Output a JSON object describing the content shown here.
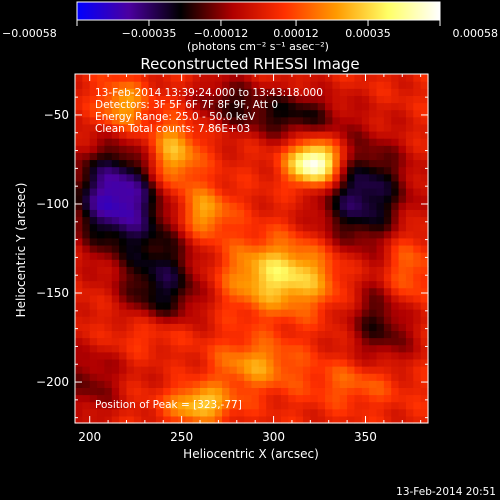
{
  "chart_data": {
    "type": "heatmap",
    "title": "Reconstructed RHESSI Image",
    "xlabel": "Heliocentric X (arcsec)",
    "ylabel": "Heliocentric Y (arcsec)",
    "xlim": [
      192,
      384
    ],
    "ylim": [
      -223,
      -27
    ],
    "x_ticks": [
      200,
      250,
      300,
      350
    ],
    "x_tick_labels": [
      "200",
      "250",
      "300",
      "350"
    ],
    "y_ticks": [
      -50,
      -100,
      -150,
      -200
    ],
    "y_tick_labels": [
      "−50",
      "−100",
      "−150",
      "−200"
    ],
    "colorbar": {
      "range": [
        -0.00058,
        0.00058
      ],
      "ticks": [
        -0.00058,
        -0.00035,
        -0.00012,
        0.00012,
        0.00035,
        0.00058
      ],
      "tick_labels": [
        "−0.00058",
        "−0.00035",
        "−0.00012",
        "0.00012",
        "0.00035",
        "0.00058"
      ],
      "units_label": "(photons cm⁻² s⁻¹ asec⁻²)",
      "colors": [
        "#0000ff",
        "#4b00a0",
        "#000000",
        "#b00000",
        "#ff3000",
        "#ff9a00",
        "#ffff66",
        "#ffffff"
      ]
    },
    "annotations": [
      "13-Feb-2014 13:39:24.000 to 13:43:18.000",
      "Detectors: 3F 5F 6F 7F 8F 9F, Att 0",
      "Energy Range: 25.0 - 50.0 keV",
      "Clean    Total counts: 7.86E+03"
    ],
    "peak_label": "Position of Peak = [323,-77]",
    "peak_position": [
      323,
      -77
    ],
    "peak_value": 0.00058,
    "sources": [
      {
        "x": 323,
        "y": -77,
        "sx": 10,
        "sy": 9,
        "amp": 0.00066
      },
      {
        "x": 305,
        "y": -140,
        "sx": 22,
        "sy": 14,
        "amp": 0.00036
      },
      {
        "x": 245,
        "y": -73,
        "sx": 10,
        "sy": 14,
        "amp": 0.00032
      },
      {
        "x": 218,
        "y": -45,
        "sx": 9,
        "sy": 10,
        "amp": 0.00026
      },
      {
        "x": 262,
        "y": -105,
        "sx": 10,
        "sy": 10,
        "amp": 0.00026
      },
      {
        "x": 290,
        "y": -190,
        "sx": 16,
        "sy": 10,
        "amp": 0.00022
      },
      {
        "x": 260,
        "y": -212,
        "sx": 12,
        "sy": 7,
        "amp": 0.00032
      },
      {
        "x": 236,
        "y": -172,
        "sx": 16,
        "sy": 9,
        "amp": 0.00018
      },
      {
        "x": 372,
        "y": -140,
        "sx": 10,
        "sy": 18,
        "amp": 0.0002
      },
      {
        "x": 345,
        "y": -200,
        "sx": 18,
        "sy": 9,
        "amp": 0.00014
      },
      {
        "x": 215,
        "y": -96,
        "sx": 18,
        "sy": 20,
        "amp": -0.0005
      },
      {
        "x": 240,
        "y": -146,
        "sx": 16,
        "sy": 22,
        "amp": -0.00032
      },
      {
        "x": 348,
        "y": -95,
        "sx": 18,
        "sy": 22,
        "amp": -0.00038
      },
      {
        "x": 310,
        "y": -50,
        "sx": 18,
        "sy": 10,
        "amp": -0.00026
      },
      {
        "x": 360,
        "y": -165,
        "sx": 14,
        "sy": 18,
        "amp": -0.00026
      },
      {
        "x": 275,
        "y": -42,
        "sx": 14,
        "sy": 10,
        "amp": -0.0002
      },
      {
        "x": 200,
        "y": -200,
        "sx": 12,
        "sy": 15,
        "amp": -0.00018
      }
    ]
  },
  "footer": {
    "timestamp": "13-Feb-2014 20:51"
  }
}
